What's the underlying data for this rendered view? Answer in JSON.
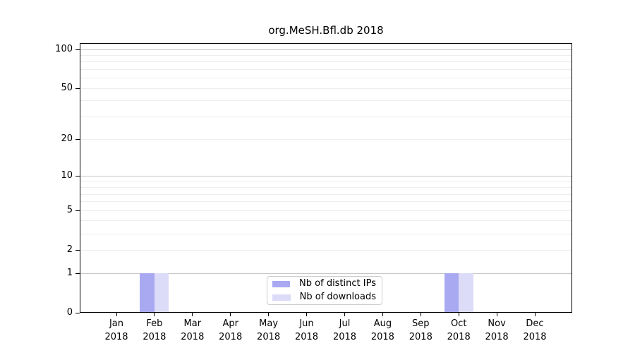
{
  "chart_data": {
    "type": "bar",
    "title": "org.MeSH.Bfl.db 2018",
    "categories": [
      "Jan",
      "Feb",
      "Mar",
      "Apr",
      "May",
      "Jun",
      "Jul",
      "Aug",
      "Sep",
      "Oct",
      "Nov",
      "Dec"
    ],
    "year_label": "2018",
    "series": [
      {
        "name": "Nb of distinct IPs",
        "color": "#a9a9f2",
        "values": [
          0,
          1,
          0,
          0,
          0,
          0,
          0,
          0,
          0,
          1,
          0,
          0
        ]
      },
      {
        "name": "Nb of downloads",
        "color": "#dcdcf8",
        "values": [
          0,
          1,
          0,
          0,
          0,
          0,
          0,
          0,
          0,
          1,
          0,
          0
        ]
      }
    ],
    "yscale": "log1p",
    "ylim": [
      0,
      112
    ],
    "y_ticks": [
      0,
      1,
      2,
      5,
      10,
      20,
      50,
      100
    ],
    "y_major_gridlines": [
      1,
      10,
      100
    ],
    "y_minor_gridlines": [
      2,
      3,
      4,
      5,
      6,
      7,
      8,
      9,
      20,
      30,
      40,
      50,
      60,
      70,
      80,
      90
    ],
    "grid_color_major": "#c8c8c8",
    "grid_color_minor": "#ededed",
    "legend_position": "lower center",
    "xlabel": "",
    "ylabel": ""
  }
}
